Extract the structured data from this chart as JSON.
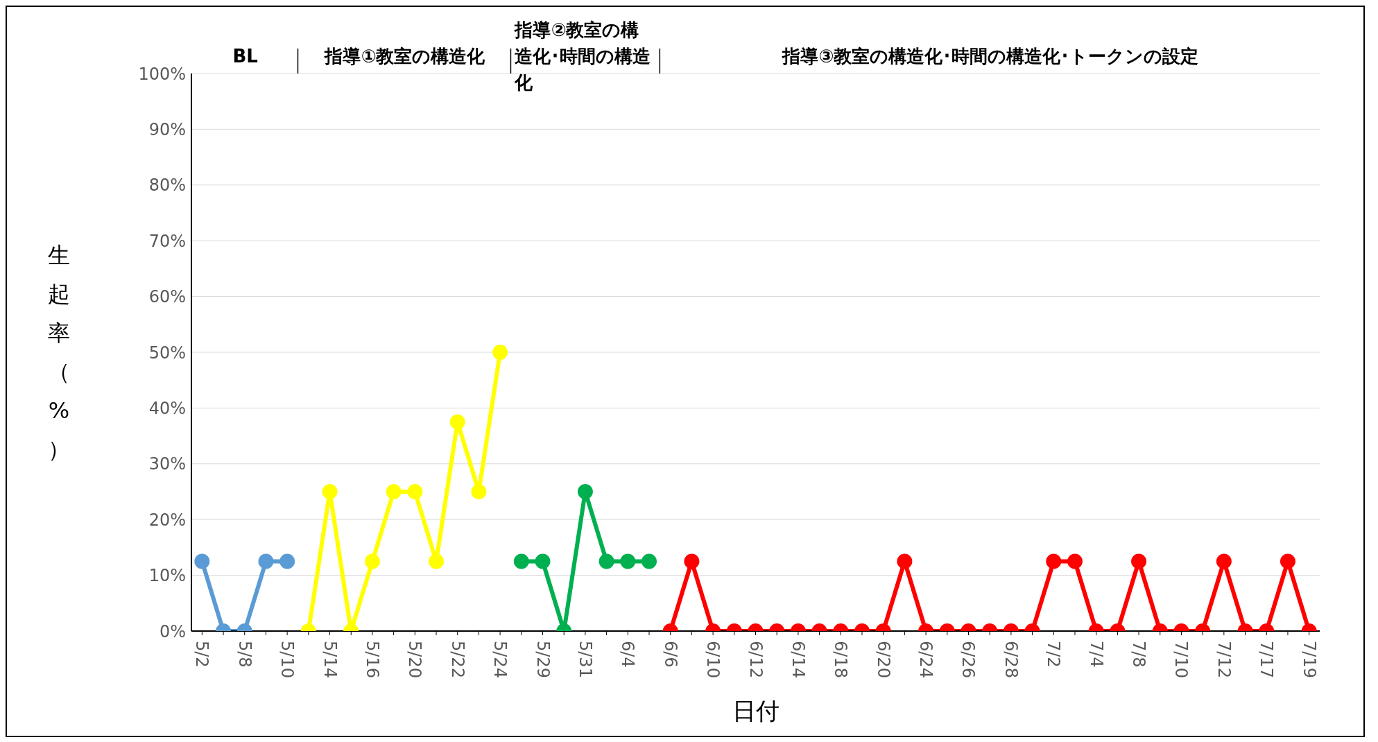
{
  "chart_data": {
    "type": "line",
    "xlabel": "日付",
    "ylabel": "生起率（%）",
    "annotations": [
      "BL",
      "指導①教室の構造化",
      "指導②教室の構造化･時間の構造化",
      "指導③教室の構造化･時間の構造化･トークンの設定"
    ],
    "categories": [
      "5/2",
      null,
      "5/8",
      null,
      "5/10",
      null,
      "5/14",
      null,
      "5/16",
      null,
      "5/20",
      null,
      "5/22",
      null,
      "5/24",
      null,
      "5/29",
      null,
      "5/31",
      null,
      "6/4",
      null,
      "6/6",
      null,
      "6/10",
      null,
      "6/12",
      null,
      "6/14",
      null,
      "6/18",
      null,
      "6/20",
      null,
      "6/24",
      null,
      "6/26",
      null,
      "6/28",
      null,
      "7/2",
      null,
      "7/4",
      null,
      "7/8",
      null,
      "7/10",
      null,
      "7/12",
      null,
      "7/17",
      null,
      "7/19"
    ],
    "series": [
      {
        "color": "#5b9bd5",
        "values": [
          12.5,
          0,
          0,
          12.5,
          12.5,
          null,
          null,
          null,
          null,
          null,
          null,
          null,
          null,
          null,
          null,
          null,
          null,
          null,
          null,
          null,
          null,
          null,
          null,
          null,
          null,
          null,
          null,
          null,
          null,
          null,
          null,
          null,
          null,
          null,
          null,
          null,
          null,
          null,
          null,
          null,
          null,
          null,
          null,
          null,
          null,
          null,
          null,
          null,
          null,
          null,
          null,
          null,
          null
        ]
      },
      {
        "color": "#ffff00",
        "values": [
          null,
          null,
          null,
          null,
          null,
          0,
          25,
          0,
          12.5,
          25,
          25,
          12.5,
          37.5,
          25,
          50,
          null,
          null,
          null,
          null,
          null,
          null,
          null,
          null,
          null,
          null,
          null,
          null,
          null,
          null,
          null,
          null,
          null,
          null,
          null,
          null,
          null,
          null,
          null,
          null,
          null,
          null,
          null,
          null,
          null,
          null,
          null,
          null,
          null,
          null,
          null,
          null,
          null,
          null
        ]
      },
      {
        "color": "#00b050",
        "values": [
          null,
          null,
          null,
          null,
          null,
          null,
          null,
          null,
          null,
          null,
          null,
          null,
          null,
          null,
          null,
          12.5,
          12.5,
          0,
          25,
          12.5,
          12.5,
          12.5,
          null,
          null,
          null,
          null,
          null,
          null,
          null,
          null,
          null,
          null,
          null,
          null,
          null,
          null,
          null,
          null,
          null,
          null,
          null,
          null,
          null,
          null,
          null,
          null,
          null,
          null,
          null,
          null,
          null,
          null,
          null
        ]
      },
      {
        "color": "#ff0000",
        "values": [
          null,
          null,
          null,
          null,
          null,
          null,
          null,
          null,
          null,
          null,
          null,
          null,
          null,
          null,
          null,
          null,
          null,
          null,
          null,
          null,
          null,
          null,
          0,
          12.5,
          0,
          0,
          0,
          0,
          0,
          0,
          0,
          0,
          0,
          12.5,
          0,
          0,
          0,
          0,
          0,
          0,
          12.5,
          12.5,
          0,
          0,
          12.5,
          0,
          0,
          0,
          12.5,
          0,
          0,
          12.5,
          0
        ]
      }
    ],
    "ylim": [
      0,
      100
    ],
    "yticks": [
      {
        "value": 0,
        "label": "0%"
      },
      {
        "value": 10,
        "label": "10%"
      },
      {
        "value": 20,
        "label": "20%"
      },
      {
        "value": 30,
        "label": "30%"
      },
      {
        "value": 40,
        "label": "40%"
      },
      {
        "value": 50,
        "label": "50%"
      },
      {
        "value": 60,
        "label": "60%"
      },
      {
        "value": 70,
        "label": "70%"
      },
      {
        "value": 80,
        "label": "80%"
      },
      {
        "value": 90,
        "label": "90%"
      },
      {
        "value": 100,
        "label": "100%"
      }
    ],
    "grid": "y",
    "marker": "circle",
    "line_style": "solid"
  }
}
